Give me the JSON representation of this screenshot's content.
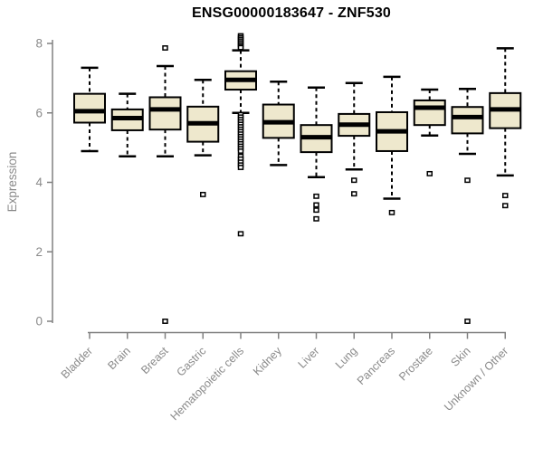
{
  "title": "ENSG00000183647 - ZNF530",
  "chart_data": {
    "type": "boxplot",
    "title": "ENSG00000183647 - ZNF530",
    "ylabel": "Expression",
    "xlabel": "",
    "ylim": [
      0,
      8.3
    ],
    "yticks": [
      0,
      2,
      4,
      6,
      8
    ],
    "grid": false,
    "legend": "none",
    "categories": [
      "Bladder",
      "Brain",
      "Breast",
      "Gastric",
      "Hematopoietic cells",
      "Kidney",
      "Liver",
      "Lung",
      "Pancreas",
      "Prostate",
      "Skin",
      "Unknown / Other"
    ],
    "series": [
      {
        "name": "Bladder",
        "whisker_low": 4.9,
        "q1": 5.72,
        "median": 6.05,
        "q3": 6.55,
        "whisker_high": 7.3,
        "outliers": []
      },
      {
        "name": "Brain",
        "whisker_low": 4.75,
        "q1": 5.5,
        "median": 5.85,
        "q3": 6.1,
        "whisker_high": 6.55,
        "outliers": []
      },
      {
        "name": "Breast",
        "whisker_low": 4.75,
        "q1": 5.52,
        "median": 6.1,
        "q3": 6.45,
        "whisker_high": 7.35,
        "outliers": [
          7.87,
          0
        ]
      },
      {
        "name": "Gastric",
        "whisker_low": 4.78,
        "q1": 5.17,
        "median": 5.7,
        "q3": 6.18,
        "whisker_high": 6.95,
        "outliers": [
          3.65
        ]
      },
      {
        "name": "Hematopoietic cells",
        "whisker_low": 6.0,
        "q1": 6.67,
        "median": 6.95,
        "q3": 7.2,
        "whisker_high": 7.8,
        "outliers": [
          8.22,
          8.17,
          8.12,
          8.07,
          8.02,
          7.97,
          7.92,
          7.88,
          5.95,
          5.88,
          5.81,
          5.74,
          5.67,
          5.6,
          5.53,
          5.46,
          5.39,
          5.32,
          5.25,
          5.18,
          5.11,
          5.04,
          4.97,
          4.9,
          4.75,
          4.67,
          4.58,
          4.5,
          4.43,
          2.52
        ]
      },
      {
        "name": "Kidney",
        "whisker_low": 4.5,
        "q1": 5.28,
        "median": 5.73,
        "q3": 6.24,
        "whisker_high": 6.9,
        "outliers": []
      },
      {
        "name": "Liver",
        "whisker_low": 4.15,
        "q1": 4.87,
        "median": 5.3,
        "q3": 5.65,
        "whisker_high": 6.73,
        "outliers": [
          3.6,
          3.35,
          3.2,
          2.95
        ]
      },
      {
        "name": "Lung",
        "whisker_low": 4.37,
        "q1": 5.34,
        "median": 5.66,
        "q3": 5.97,
        "whisker_high": 6.86,
        "outliers": [
          4.06,
          3.67
        ]
      },
      {
        "name": "Pancreas",
        "whisker_low": 3.53,
        "q1": 4.9,
        "median": 5.47,
        "q3": 6.02,
        "whisker_high": 7.04,
        "outliers": [
          3.13
        ]
      },
      {
        "name": "Prostate",
        "whisker_low": 5.35,
        "q1": 5.65,
        "median": 6.15,
        "q3": 6.36,
        "whisker_high": 6.67,
        "outliers": [
          4.25
        ]
      },
      {
        "name": "Skin",
        "whisker_low": 4.82,
        "q1": 5.41,
        "median": 5.88,
        "q3": 6.17,
        "whisker_high": 6.69,
        "outliers": [
          4.06,
          0
        ]
      },
      {
        "name": "Unknown / Other",
        "whisker_low": 4.2,
        "q1": 5.56,
        "median": 6.1,
        "q3": 6.57,
        "whisker_high": 7.86,
        "outliers": [
          3.62,
          3.33
        ]
      }
    ],
    "colors": {
      "background": "#FFFFFF",
      "box_fill": "#EEE8CD",
      "box_stroke": "#000000",
      "median": "#000000",
      "whisker": "#000000",
      "outlier_stroke": "#000000",
      "outlier_fill": "#FFFFFF",
      "axis": "#808080",
      "tick_label": "#8A8A8A",
      "title": "#000000"
    }
  }
}
